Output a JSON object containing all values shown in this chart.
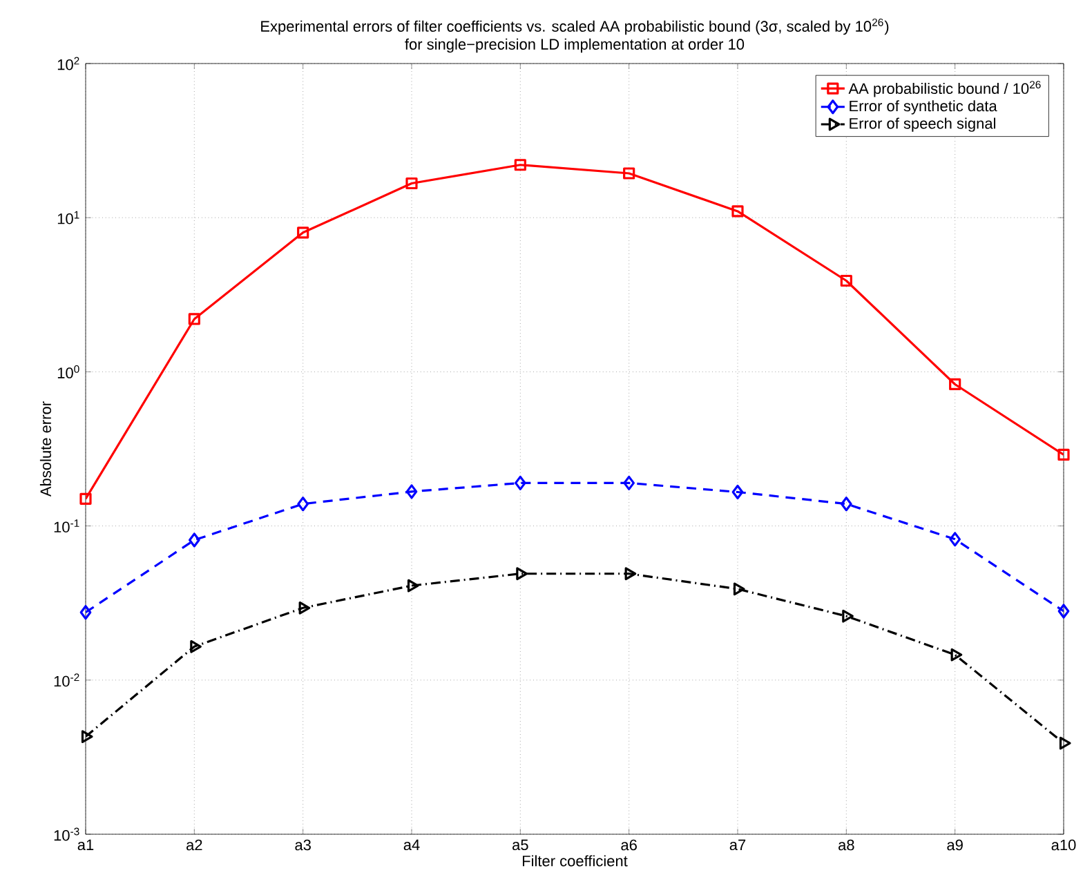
{
  "chart_data": {
    "type": "line",
    "title": "Experimental errors of filter coefficients vs. scaled AA probabilistic bound (3σ, scaled by 10$^{26}$)",
    "subtitle": "for single−precision LD implementation at order 10",
    "xlabel": "Filter coefficient",
    "ylabel": "Absolute error",
    "categories": [
      "a1",
      "a2",
      "a3",
      "a4",
      "a5",
      "a6",
      "a7",
      "a8",
      "a9",
      "a10"
    ],
    "series": [
      {
        "name": "AA probabilistic bound / 10$^{26}$",
        "color": "#ff0000",
        "marker": "square",
        "line_style": "solid",
        "values": [
          0.15,
          2.2,
          8.0,
          16.7,
          22,
          19.4,
          11,
          3.9,
          0.83,
          0.29
        ]
      },
      {
        "name": "Error of synthetic data",
        "color": "#0000ff",
        "marker": "diamond",
        "line_style": "dashed",
        "values": [
          0.0275,
          0.081,
          0.139,
          0.167,
          0.19,
          0.19,
          0.166,
          0.139,
          0.082,
          0.028
        ]
      },
      {
        "name": "Error of speech signal",
        "color": "#000000",
        "marker": "triangle",
        "line_style": "dashdot",
        "values": [
          0.0043,
          0.0165,
          0.0294,
          0.041,
          0.049,
          0.049,
          0.039,
          0.026,
          0.0146,
          0.0039
        ]
      }
    ],
    "log": "y",
    "ylim": [
      0.001,
      100
    ],
    "yticks": [
      {
        "value": 0.001,
        "label": "10$^{-3}$"
      },
      {
        "value": 0.01,
        "label": "10$^{-2}$"
      },
      {
        "value": 0.1,
        "label": "10$^{-1}$"
      },
      {
        "value": 1,
        "label": "10$^{0}$"
      },
      {
        "value": 10,
        "label": "10$^{1}$"
      },
      {
        "value": 100,
        "label": "10$^{2}$"
      }
    ],
    "grid": true,
    "legend": "top right"
  }
}
